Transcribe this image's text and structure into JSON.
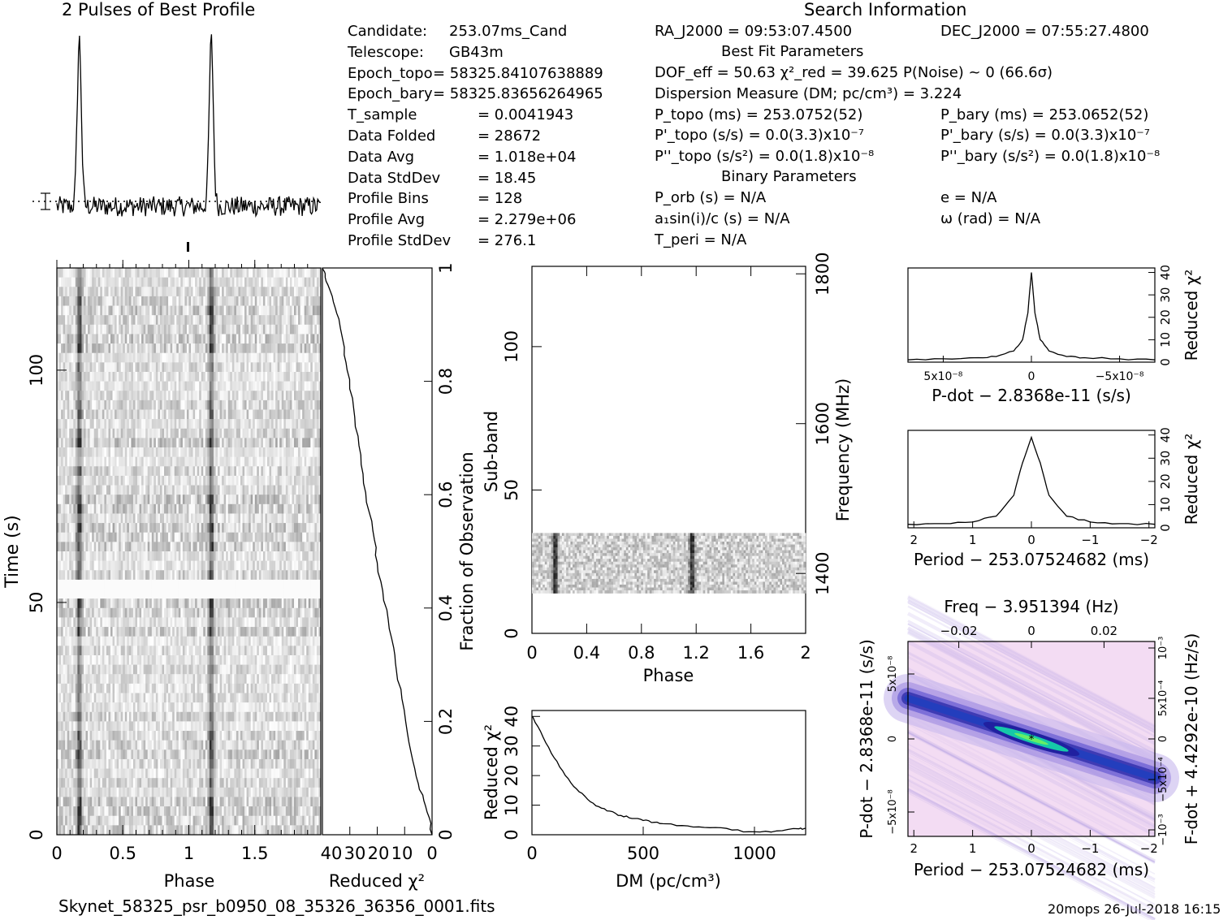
{
  "header": {
    "profile_title": "2 Pulses of Best Profile",
    "search_title": "Search Information",
    "best_fit_title": "Best Fit Parameters",
    "binary_title": "Binary Parameters"
  },
  "candidate_info": [
    {
      "label": "Candidate:",
      "value": "253.07ms_Cand"
    },
    {
      "label": "Telescope:",
      "value": "GB43m"
    },
    {
      "label": "Epoch_topo",
      "value": "= 58325.84107638889"
    },
    {
      "label": "Epoch_bary",
      "value": "= 58325.83656264965"
    },
    {
      "label": "T_sample",
      "value": "0.0041943"
    },
    {
      "label": "Data Folded",
      "value": "28672"
    },
    {
      "label": "Data Avg",
      "value": "1.018e+04"
    },
    {
      "label": "Data StdDev",
      "value": "18.45"
    },
    {
      "label": "Profile Bins",
      "value": "128"
    },
    {
      "label": "Profile Avg",
      "value": "2.279e+06"
    },
    {
      "label": "Profile StdDev",
      "value": "276.1"
    }
  ],
  "search_info": {
    "ra": "RA_J2000 = 09:53:07.4500",
    "dec": "DEC_J2000 = 07:55:27.4800",
    "dof_line": "DOF_eff = 50.63  χ²_red = 39.625  P(Noise) ~ 0   (66.6σ)",
    "dm_line": "Dispersion Measure (DM; pc/cm³) = 3.224",
    "p_topo": "P_topo (ms) =  253.0752(52)",
    "pd_topo": "P'_topo (s/s) = 0.0(3.3)x10⁻⁷",
    "pdd_topo": "P''_topo (s/s²) = 0.0(1.8)x10⁻⁸",
    "p_bary": "P_bary (ms) =  253.0652(52)",
    "pd_bary": "P'_bary (s/s) = 0.0(3.3)x10⁻⁷",
    "pdd_bary": "P''_bary (s/s²) = 0.0(1.8)x10⁻⁸",
    "p_orb": "P_orb (s) = N/A",
    "a1sini": "a₁sin(i)/c (s) = N/A",
    "t_peri": "T_peri = N/A",
    "e": "e = N/A",
    "omega": "ω (rad) = N/A"
  },
  "footer": {
    "filename": "Skynet_58325_psr_b0950_08_35326_36356_0001.fits",
    "stamp": "20mops 26-Jul-2018 16:15"
  },
  "chart_data": [
    {
      "type": "line",
      "panel": "profile",
      "title": "2 Pulses of Best Profile",
      "x_range": [
        0,
        2
      ],
      "peaks_phase": [
        0.17,
        1.17
      ],
      "peak_relative_height": 1.0,
      "baseline_dotted": true
    },
    {
      "type": "heatmap",
      "panel": "time-phase",
      "xlabel": "Phase",
      "ylabel": "Time (s)",
      "x_ticks": [
        0,
        0.5,
        1,
        1.5
      ],
      "y_ticks": [
        0,
        50,
        100
      ],
      "x_range": [
        0,
        2
      ],
      "y_range": [
        0,
        122
      ],
      "pulse_phases": [
        0.17,
        1.17
      ]
    },
    {
      "type": "line",
      "panel": "time-chi2",
      "xlabel": "Reduced χ²",
      "ylabel": "Fraction of Observation",
      "x_ticks": [
        40,
        30,
        20,
        10,
        0
      ],
      "y_ticks": [
        0,
        0.2,
        0.4,
        0.6,
        0.8,
        1
      ],
      "x_range": [
        40,
        0
      ],
      "y_range": [
        0,
        1
      ],
      "points": [
        [
          0,
          0
        ],
        [
          1,
          0.03
        ],
        [
          3,
          0.06
        ],
        [
          5,
          0.09
        ],
        [
          7,
          0.13
        ],
        [
          9,
          0.18
        ],
        [
          11,
          0.24
        ],
        [
          13,
          0.29
        ],
        [
          14,
          0.33
        ],
        [
          16,
          0.38
        ],
        [
          18,
          0.43
        ],
        [
          20,
          0.48
        ],
        [
          21,
          0.52
        ],
        [
          23,
          0.57
        ],
        [
          25,
          0.62
        ],
        [
          26,
          0.67
        ],
        [
          28,
          0.72
        ],
        [
          29,
          0.77
        ],
        [
          31,
          0.82
        ],
        [
          32,
          0.86
        ],
        [
          34,
          0.91
        ],
        [
          36,
          0.94
        ],
        [
          38,
          0.97
        ],
        [
          39,
          0.99
        ],
        [
          40,
          1.0
        ]
      ]
    },
    {
      "type": "heatmap",
      "panel": "subband-phase",
      "xlabel": "Phase",
      "ylabel": "Sub-band",
      "y2label": "Frequency (MHz)",
      "x_ticks": [
        0,
        0.4,
        0.8,
        1.2,
        1.6,
        2
      ],
      "y_ticks": [
        0,
        50,
        100
      ],
      "y2_ticks": [
        1400,
        1600,
        1800
      ],
      "x_range": [
        0,
        2
      ],
      "y_range": [
        0,
        128
      ],
      "data_subband_range": [
        14,
        35
      ],
      "pulse_phases": [
        0.17,
        1.17
      ]
    },
    {
      "type": "line",
      "panel": "dm-chi2",
      "xlabel": "DM (pc/cm³)",
      "ylabel": "Reduced χ²",
      "x_ticks": [
        0,
        500,
        1000
      ],
      "y_ticks": [
        0,
        10,
        20,
        30,
        40
      ],
      "x_range": [
        0,
        1230
      ],
      "y_range": [
        0,
        42
      ],
      "points": [
        [
          3,
          40
        ],
        [
          50,
          33
        ],
        [
          100,
          26
        ],
        [
          150,
          20
        ],
        [
          200,
          15.5
        ],
        [
          250,
          12
        ],
        [
          300,
          9.5
        ],
        [
          350,
          8
        ],
        [
          400,
          6.5
        ],
        [
          450,
          5.5
        ],
        [
          500,
          4.8
        ],
        [
          550,
          4.2
        ],
        [
          600,
          3.7
        ],
        [
          700,
          3
        ],
        [
          800,
          2.4
        ],
        [
          900,
          1.6
        ],
        [
          1000,
          1.0
        ],
        [
          1100,
          1.3
        ],
        [
          1200,
          2.0
        ],
        [
          1230,
          2.2
        ]
      ]
    },
    {
      "type": "line",
      "panel": "pdot-chi2",
      "xlabel": "P-dot − 2.8368e-11 (s/s)",
      "ylabel": "Reduced χ²",
      "x_ticks": [
        "5x10⁻⁸",
        "0",
        "−5x10⁻⁸"
      ],
      "y_ticks": [
        0,
        10,
        20,
        30,
        40
      ],
      "x_range": [
        7e-08,
        -7e-08
      ],
      "y_range": [
        0,
        42
      ],
      "points": [
        [
          7e-08,
          1
        ],
        [
          5e-08,
          1.5
        ],
        [
          3e-08,
          2
        ],
        [
          2e-08,
          2.5
        ],
        [
          1e-08,
          5
        ],
        [
          5e-09,
          10
        ],
        [
          2e-09,
          22
        ],
        [
          0,
          40
        ],
        [
          -2e-09,
          22
        ],
        [
          -5e-09,
          10
        ],
        [
          -1e-08,
          5
        ],
        [
          -2e-08,
          2.5
        ],
        [
          -3e-08,
          2
        ],
        [
          -5e-08,
          1.5
        ],
        [
          -7e-08,
          1
        ]
      ]
    },
    {
      "type": "line",
      "panel": "period-chi2",
      "xlabel": "Period − 253.07524682 (ms)",
      "ylabel": "Reduced χ²",
      "x_ticks": [
        2,
        1,
        0,
        -1,
        -2
      ],
      "y_ticks": [
        0,
        10,
        20,
        30,
        40
      ],
      "x_range": [
        2.1,
        -2.1
      ],
      "y_range": [
        0,
        42
      ],
      "points": [
        [
          2.1,
          1.5
        ],
        [
          1.5,
          1.8
        ],
        [
          1,
          2.5
        ],
        [
          0.6,
          5
        ],
        [
          0.3,
          14
        ],
        [
          0.15,
          28
        ],
        [
          0,
          39
        ],
        [
          -0.15,
          28
        ],
        [
          -0.3,
          14
        ],
        [
          -0.6,
          5
        ],
        [
          -1,
          2.5
        ],
        [
          -1.5,
          1.8
        ],
        [
          -2.1,
          1.5
        ]
      ]
    },
    {
      "type": "heatmap",
      "panel": "period-pdot",
      "title": "Freq − 3.951394 (Hz)",
      "xlabel": "Period − 253.07524682 (ms)",
      "ylabel": "P-dot − 2.8368e-11 (s/s)",
      "y2label": "F-dot + 4.4292e-10 (Hz/s)",
      "x_ticks": [
        2,
        1,
        0,
        -1,
        -2
      ],
      "top_ticks": [
        -0.02,
        0,
        0.02
      ],
      "y_ticks": [
        "5x10⁻⁸",
        "0",
        "−5x10⁻⁸"
      ],
      "y2_ticks": [
        "−10⁻³",
        "−5x10⁻⁴",
        "0",
        "5x10⁻⁴",
        "10⁻³"
      ],
      "best_point": [
        0,
        0
      ]
    }
  ]
}
